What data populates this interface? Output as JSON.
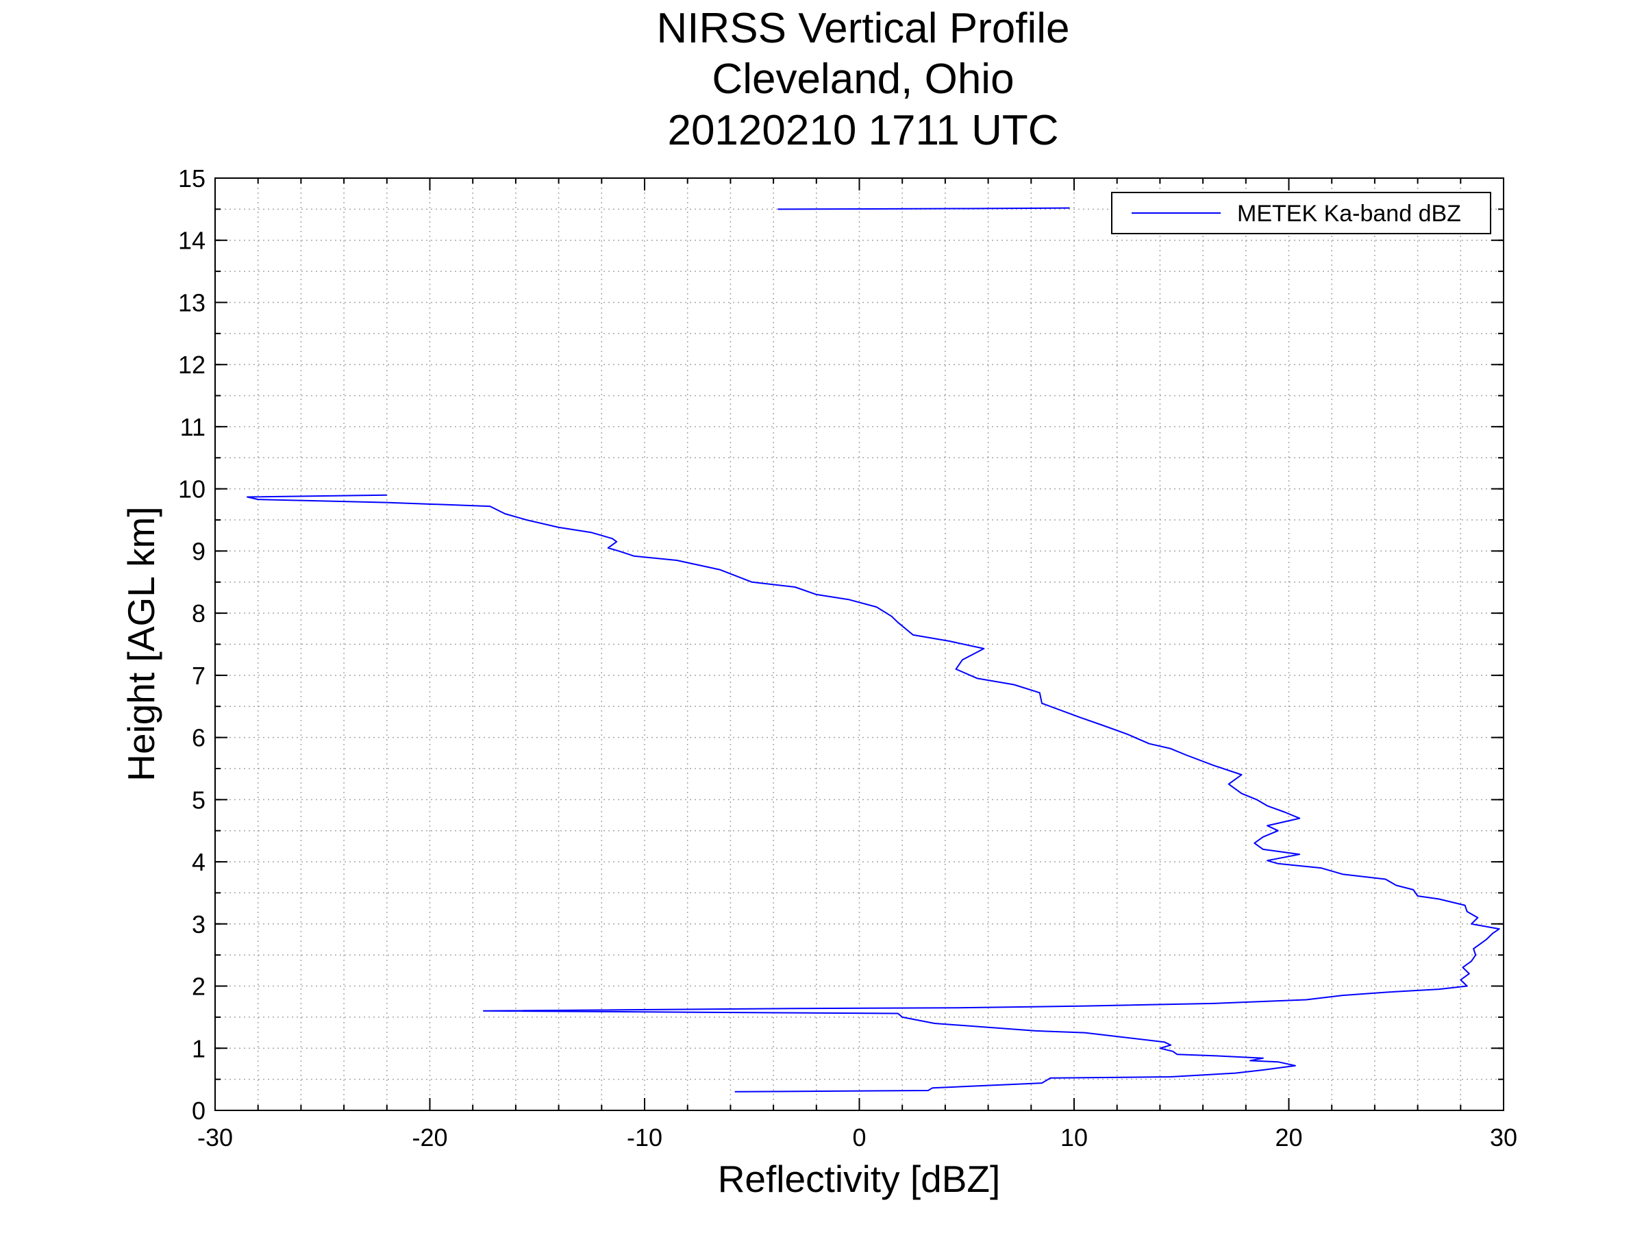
{
  "chart_data": {
    "type": "line",
    "title": [
      "NIRSS Vertical Profile",
      "Cleveland, Ohio",
      "20120210 1711 UTC"
    ],
    "xlabel": "Reflectivity [dBZ]",
    "ylabel": "Height [AGL km]",
    "xlim": [
      -30,
      30
    ],
    "ylim": [
      0,
      15
    ],
    "xticks": [
      -30,
      -20,
      -10,
      0,
      10,
      20,
      30
    ],
    "yticks": [
      0,
      1,
      2,
      3,
      4,
      5,
      6,
      7,
      8,
      9,
      10,
      11,
      12,
      13,
      14,
      15
    ],
    "xtick_labels": [
      "-30",
      "-20",
      "-10",
      "0",
      "10",
      "20",
      "30"
    ],
    "ytick_labels": [
      "0",
      "1",
      "2",
      "3",
      "4",
      "5",
      "6",
      "7",
      "8",
      "9",
      "10",
      "11",
      "12",
      "13",
      "14",
      "15"
    ],
    "grid": true,
    "legend_position": "top-right",
    "series": [
      {
        "name": "METEK Ka-band dBZ",
        "color": "#0000ff",
        "segments": [
          [
            [
              -5.8,
              0.3
            ],
            [
              3.2,
              0.32
            ],
            [
              3.4,
              0.36
            ],
            [
              8.5,
              0.44
            ],
            [
              8.9,
              0.52
            ],
            [
              14.5,
              0.54
            ],
            [
              17.5,
              0.6
            ],
            [
              18.8,
              0.65
            ],
            [
              20.3,
              0.72
            ],
            [
              19.5,
              0.78
            ],
            [
              18.2,
              0.8
            ],
            [
              18.8,
              0.84
            ],
            [
              16.5,
              0.88
            ],
            [
              14.8,
              0.9
            ],
            [
              14.6,
              0.95
            ],
            [
              14.0,
              1.0
            ],
            [
              14.5,
              1.05
            ],
            [
              14.2,
              1.1
            ],
            [
              10.5,
              1.25
            ],
            [
              8.2,
              1.28
            ],
            [
              3.5,
              1.4
            ],
            [
              2.0,
              1.5
            ],
            [
              1.8,
              1.56
            ],
            [
              -17.5,
              1.6
            ],
            [
              -3.0,
              1.64
            ],
            [
              4.5,
              1.65
            ],
            [
              10.5,
              1.68
            ],
            [
              16.5,
              1.72
            ],
            [
              20.8,
              1.78
            ],
            [
              22.5,
              1.85
            ],
            [
              24.5,
              1.9
            ],
            [
              27.0,
              1.95
            ],
            [
              28.3,
              2.0
            ],
            [
              28.0,
              2.1
            ],
            [
              28.4,
              2.2
            ],
            [
              28.1,
              2.3
            ],
            [
              28.5,
              2.4
            ],
            [
              28.7,
              2.5
            ],
            [
              28.6,
              2.6
            ],
            [
              29.2,
              2.75
            ],
            [
              29.5,
              2.85
            ],
            [
              29.8,
              2.92
            ],
            [
              28.5,
              3.0
            ],
            [
              28.8,
              3.1
            ],
            [
              28.3,
              3.2
            ],
            [
              28.2,
              3.3
            ],
            [
              27.0,
              3.4
            ],
            [
              26.0,
              3.45
            ],
            [
              25.8,
              3.55
            ],
            [
              25.0,
              3.62
            ],
            [
              24.5,
              3.72
            ],
            [
              22.5,
              3.8
            ],
            [
              21.5,
              3.9
            ],
            [
              19.5,
              3.97
            ],
            [
              19.0,
              4.02
            ],
            [
              20.5,
              4.12
            ],
            [
              18.8,
              4.2
            ],
            [
              18.4,
              4.3
            ],
            [
              18.8,
              4.4
            ],
            [
              19.5,
              4.5
            ],
            [
              19.0,
              4.58
            ],
            [
              20.5,
              4.7
            ],
            [
              19.8,
              4.8
            ],
            [
              19.0,
              4.9
            ],
            [
              18.5,
              5.0
            ],
            [
              17.8,
              5.1
            ],
            [
              17.2,
              5.25
            ],
            [
              17.8,
              5.4
            ],
            [
              16.5,
              5.55
            ],
            [
              15.2,
              5.72
            ],
            [
              14.5,
              5.82
            ],
            [
              13.5,
              5.9
            ],
            [
              12.5,
              6.05
            ],
            [
              11.3,
              6.2
            ],
            [
              10.3,
              6.32
            ],
            [
              8.5,
              6.55
            ],
            [
              8.4,
              6.72
            ],
            [
              7.2,
              6.85
            ],
            [
              5.5,
              6.95
            ],
            [
              4.5,
              7.1
            ],
            [
              4.8,
              7.25
            ],
            [
              5.8,
              7.43
            ],
            [
              4.2,
              7.55
            ],
            [
              2.5,
              7.65
            ],
            [
              1.8,
              7.85
            ],
            [
              1.5,
              7.95
            ],
            [
              0.8,
              8.1
            ],
            [
              -0.5,
              8.22
            ],
            [
              -2.0,
              8.3
            ],
            [
              -3.0,
              8.42
            ],
            [
              -5.0,
              8.5
            ],
            [
              -6.5,
              8.7
            ],
            [
              -8.5,
              8.85
            ],
            [
              -10.5,
              8.92
            ],
            [
              -11.2,
              9.0
            ],
            [
              -11.7,
              9.05
            ],
            [
              -11.3,
              9.15
            ],
            [
              -11.5,
              9.2
            ],
            [
              -12.0,
              9.25
            ],
            [
              -12.5,
              9.3
            ],
            [
              -14.0,
              9.38
            ],
            [
              -15.5,
              9.5
            ],
            [
              -16.5,
              9.6
            ],
            [
              -17.2,
              9.72
            ],
            [
              -22.0,
              9.78
            ],
            [
              -28.0,
              9.83
            ],
            [
              -28.5,
              9.87
            ],
            [
              -22.0,
              9.9
            ]
          ],
          [
            [
              -3.8,
              14.5
            ],
            [
              5.0,
              14.51
            ],
            [
              9.8,
              14.52
            ]
          ]
        ]
      }
    ]
  }
}
